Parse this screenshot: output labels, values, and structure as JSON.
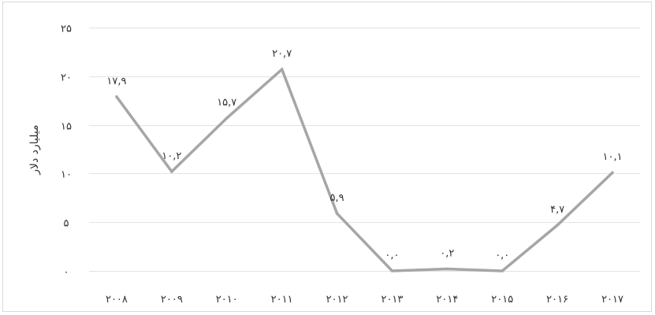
{
  "chart_data": {
    "type": "line",
    "title": "",
    "xlabel": "",
    "ylabel": "میلیارد دلار",
    "ylim": [
      0,
      25
    ],
    "yticks": [
      0,
      5,
      10,
      15,
      20,
      25
    ],
    "ytick_labels": [
      "۰",
      "۵",
      "۱۰",
      "۱۵",
      "۲۰",
      "۲۵"
    ],
    "grid": true,
    "legend": "none",
    "categories": [
      "۲۰۰۸",
      "۲۰۰۹",
      "۲۰۱۰",
      "۲۰۱۱",
      "۲۰۱۲",
      "۲۰۱۳",
      "۲۰۱۴",
      "۲۰۱۵",
      "۲۰۱۶",
      "۲۰۱۷"
    ],
    "series": [
      {
        "values": [
          17.9,
          10.2,
          15.7,
          20.7,
          5.9,
          0.0,
          0.2,
          0.0,
          4.7,
          10.1
        ],
        "data_labels": [
          "۱۷,۹",
          "۱۰,۲",
          "۱۵,۷",
          "۲۰,۷",
          "۵,۹",
          "۰,۰",
          "۰,۲",
          "۰,۰",
          "۴,۷",
          "۱۰,۱"
        ],
        "color": "#a6a6a6"
      }
    ]
  }
}
